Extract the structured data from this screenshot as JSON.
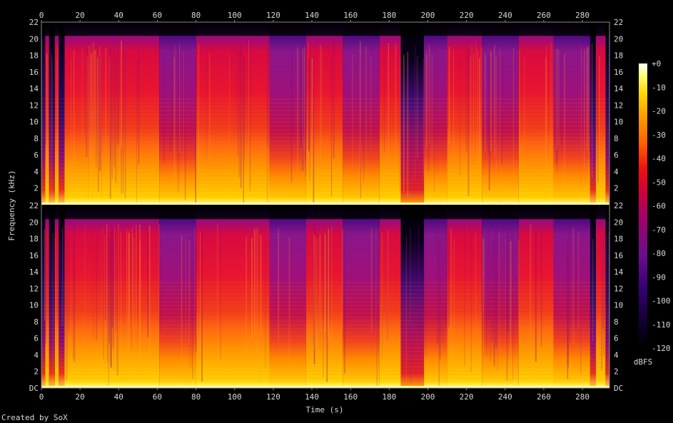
{
  "chart_data": {
    "type": "heatmap",
    "title": "",
    "xlabel": "Time (s)",
    "ylabel": "Frequency (kHz)",
    "x_ticks": [
      0,
      20,
      40,
      60,
      80,
      100,
      120,
      140,
      160,
      180,
      200,
      220,
      240,
      260,
      280
    ],
    "xlim": [
      0,
      294
    ],
    "channels": [
      {
        "y_ticks": [
          "2",
          "4",
          "6",
          "8",
          "10",
          "12",
          "14",
          "16",
          "18",
          "20",
          "22"
        ],
        "ylim": [
          0,
          22
        ]
      },
      {
        "y_ticks": [
          "DC",
          "2",
          "4",
          "6",
          "8",
          "10",
          "12",
          "14",
          "16",
          "18",
          "20",
          "22"
        ],
        "ylim": [
          0,
          22
        ]
      }
    ],
    "colorbar": {
      "label": "dBFS",
      "range": [
        -120,
        0
      ],
      "ticks": [
        "+0",
        "-10",
        "-20",
        "-30",
        "-40",
        "-50",
        "-60",
        "-70",
        "-80",
        "-90",
        "-100",
        "-110",
        "-120"
      ]
    },
    "segments": [
      {
        "start": 0,
        "end": 2,
        "level": "quiet"
      },
      {
        "start": 2,
        "end": 4,
        "level": "loud"
      },
      {
        "start": 4,
        "end": 7,
        "level": "quiet"
      },
      {
        "start": 7,
        "end": 9,
        "level": "loud"
      },
      {
        "start": 9,
        "end": 12,
        "level": "quiet"
      },
      {
        "start": 12,
        "end": 61,
        "level": "loud"
      },
      {
        "start": 61,
        "end": 80,
        "level": "medium"
      },
      {
        "start": 80,
        "end": 118,
        "level": "loud"
      },
      {
        "start": 118,
        "end": 137,
        "level": "medium"
      },
      {
        "start": 137,
        "end": 156,
        "level": "loud"
      },
      {
        "start": 156,
        "end": 175,
        "level": "medium"
      },
      {
        "start": 175,
        "end": 186,
        "level": "loud"
      },
      {
        "start": 186,
        "end": 198,
        "level": "gap"
      },
      {
        "start": 198,
        "end": 210,
        "level": "medium"
      },
      {
        "start": 210,
        "end": 228,
        "level": "loud"
      },
      {
        "start": 228,
        "end": 247,
        "level": "medium"
      },
      {
        "start": 247,
        "end": 265,
        "level": "loud"
      },
      {
        "start": 265,
        "end": 284,
        "level": "medium"
      },
      {
        "start": 284,
        "end": 287,
        "level": "quiet"
      },
      {
        "start": 287,
        "end": 292,
        "level": "loud"
      },
      {
        "start": 292,
        "end": 294,
        "level": "quiet"
      }
    ]
  },
  "footer": {
    "credit": "Created by SoX"
  },
  "colors": {
    "background": "#000000",
    "text": "#d8d8d8",
    "axis": "#8a8a8a",
    "palette": [
      "#000000",
      "#140033",
      "#3a007a",
      "#6b0f8a",
      "#a0006e",
      "#d0003a",
      "#f01010",
      "#ff6000",
      "#ffa000",
      "#ffdc00",
      "#ffff80",
      "#ffffff"
    ]
  }
}
